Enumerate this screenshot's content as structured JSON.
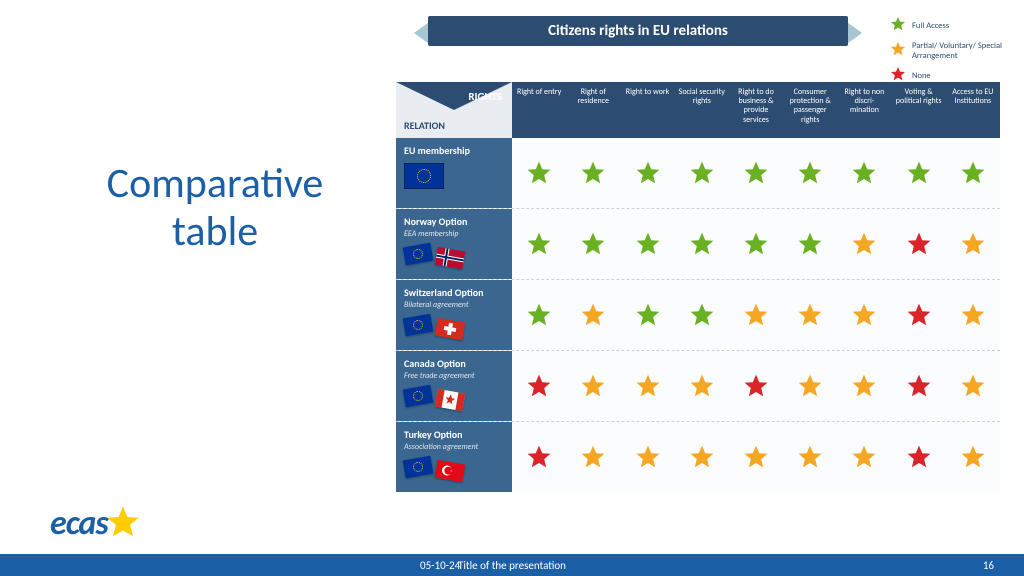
{
  "colors": {
    "brand_blue": "#1b5fa6",
    "header_navy": "#2c4d71",
    "row_label_blue": "#3a668f",
    "ribbon_tail": "#a6c6d1",
    "star_full": "#6ab023",
    "star_partial": "#f5a623",
    "star_none": "#d9252a",
    "grid_bg": "#fbfcfd",
    "divider": "#c9d2db"
  },
  "slide_title": "Comparative table",
  "ribbon_title": "Citizens rights in EU relations",
  "legend": [
    {
      "color": "#6ab023",
      "label": "Full Access"
    },
    {
      "color": "#f5a623",
      "label": "Partial/ Voluntary/ Special Arrangement"
    },
    {
      "color": "#d9252a",
      "label": "None"
    }
  ],
  "corner": {
    "rights": "RIGHTS",
    "relation": "RELATION"
  },
  "columns": [
    "Right of entry",
    "Right of residence",
    "Right to work",
    "Social security rights",
    "Right to do business & provide services",
    "Consumer protection & passenger rights",
    "Right to non discri- mination",
    "Voting & political rights",
    "Access to EU Institutions"
  ],
  "rows": [
    {
      "key": "eu",
      "name": "EU membership",
      "subtitle": "",
      "flag2": null,
      "stars": [
        "full",
        "full",
        "full",
        "full",
        "full",
        "full",
        "full",
        "full",
        "full"
      ]
    },
    {
      "key": "norway",
      "name": "Norway Option",
      "subtitle": "EEA membership",
      "flag2": {
        "type": "norway"
      },
      "stars": [
        "full",
        "full",
        "full",
        "full",
        "full",
        "full",
        "partial",
        "none",
        "partial"
      ]
    },
    {
      "key": "switzerland",
      "name": "Switzerland Option",
      "subtitle": "Bilateral agreement",
      "flag2": {
        "type": "switzerland"
      },
      "stars": [
        "full",
        "partial",
        "full",
        "full",
        "partial",
        "partial",
        "partial",
        "none",
        "partial"
      ]
    },
    {
      "key": "canada",
      "name": "Canada Option",
      "subtitle": "Free trade agreement",
      "flag2": {
        "type": "canada"
      },
      "stars": [
        "none",
        "partial",
        "partial",
        "partial",
        "none",
        "partial",
        "partial",
        "none",
        "partial"
      ]
    },
    {
      "key": "turkey",
      "name": "Turkey Option",
      "subtitle": "Association agreement",
      "flag2": {
        "type": "turkey"
      },
      "stars": [
        "none",
        "partial",
        "partial",
        "partial",
        "partial",
        "partial",
        "partial",
        "none",
        "partial"
      ]
    }
  ],
  "star_level_color": {
    "full": "#6ab023",
    "partial": "#f5a623",
    "none": "#d9252a"
  },
  "logo_text": "ecas",
  "logo_star_color": "#ffcc00",
  "footer": {
    "date": "05-10-24",
    "title": "Title of the presentation",
    "page": "16"
  }
}
